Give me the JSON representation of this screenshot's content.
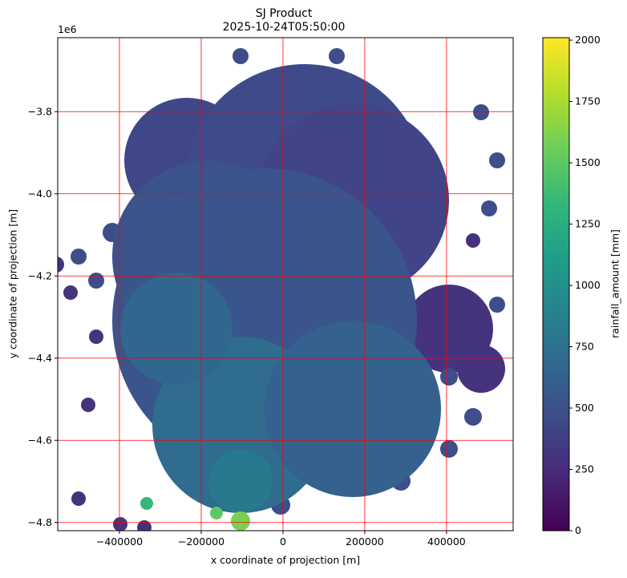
{
  "chart_data": {
    "type": "raster",
    "title": "SJ Product",
    "subtitle": "2025-10-24T05:50:00",
    "xlabel": "x coordinate of projection [m]",
    "ylabel": "y coordinate of projection [m]",
    "y_offset_text": "1e6",
    "xlim": [
      -551000,
      563000
    ],
    "ylim": [
      -4820000,
      -3620000
    ],
    "xticks": [
      {
        "value": -400000,
        "label": "−400000"
      },
      {
        "value": -200000,
        "label": "−200000"
      },
      0,
      200000,
      400000
    ],
    "yticks": [
      {
        "value": -3800000,
        "label": "−3.8"
      },
      {
        "value": -4000000,
        "label": "−4.0"
      },
      {
        "value": -4200000,
        "label": "−4.2"
      },
      {
        "value": -4400000,
        "label": "−4.4"
      },
      {
        "value": -4600000,
        "label": "−4.6"
      },
      {
        "value": -4800000,
        "label": "−4.8"
      }
    ],
    "grid": true,
    "grid_color": "#ff0000",
    "colorbar": {
      "label": "rainfall_amount [mm]",
      "colormap": "viridis",
      "clim": [
        0,
        2010
      ],
      "ticks": [
        0,
        250,
        500,
        750,
        1000,
        1250,
        1500,
        1750,
        2000
      ]
    }
  }
}
